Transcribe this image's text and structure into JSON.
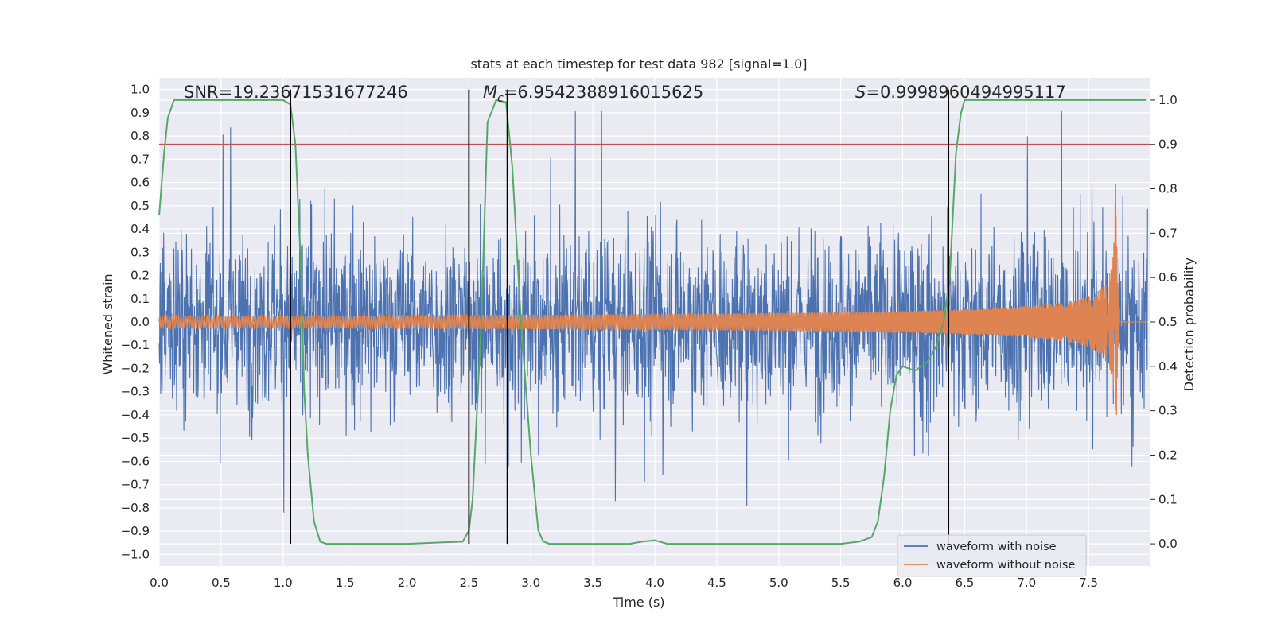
{
  "chart_data": {
    "type": "line",
    "title": "stats at each timestep for test data 982 [signal=1.0]",
    "xlabel": "Time (s)",
    "ylabel_left": "Whitened strain",
    "ylabel_right": "Detection probability",
    "xlim": [
      0.0,
      8.0
    ],
    "ylim_left": [
      -1.05,
      1.05
    ],
    "ylim_right": [
      -0.05,
      1.05
    ],
    "xticks": [
      0.0,
      0.5,
      1.0,
      1.5,
      2.0,
      2.5,
      3.0,
      3.5,
      4.0,
      4.5,
      5.0,
      5.5,
      6.0,
      6.5,
      7.0,
      7.5
    ],
    "xtick_labels": [
      "0.0",
      "0.5",
      "1.0",
      "1.5",
      "2.0",
      "2.5",
      "3.0",
      "3.5",
      "4.0",
      "4.5",
      "5.0",
      "5.5",
      "6.0",
      "6.5",
      "7.0",
      "7.5"
    ],
    "yticks_left": [
      -1.0,
      -0.9,
      -0.8,
      -0.7,
      -0.6,
      -0.5,
      -0.4,
      -0.3,
      -0.2,
      -0.1,
      0.0,
      0.1,
      0.2,
      0.3,
      0.4,
      0.5,
      0.6,
      0.7,
      0.8,
      0.9,
      1.0
    ],
    "ytick_labels_left": [
      "−1.0",
      "−0.9",
      "−0.8",
      "−0.7",
      "−0.6",
      "−0.5",
      "−0.4",
      "−0.3",
      "−0.2",
      "−0.1",
      "0.0",
      "0.1",
      "0.2",
      "0.3",
      "0.4",
      "0.5",
      "0.6",
      "0.7",
      "0.8",
      "0.9",
      "1.0"
    ],
    "yticks_right": [
      0.0,
      0.1,
      0.2,
      0.3,
      0.4,
      0.5,
      0.6,
      0.7,
      0.8,
      0.9,
      1.0
    ],
    "ytick_labels_right": [
      "0.0",
      "0.1",
      "0.2",
      "0.3",
      "0.4",
      "0.5",
      "0.6",
      "0.7",
      "0.8",
      "0.9",
      "1.0"
    ],
    "annotations": {
      "snr": "SNR=19.23671531677246",
      "mc_symbol": "M",
      "mc_sub": "c",
      "mc_value": "=6.9542388916015625",
      "s_symbol": "S",
      "s_value": "=0.9998960494995117"
    },
    "threshold_right_axis": 0.9,
    "vertical_lines_x": [
      1.06,
      2.5,
      2.81,
      6.37
    ],
    "series": [
      {
        "name": "waveform with noise",
        "axis": "left",
        "kind": "noise",
        "description_values": "dense noise envelope roughly between -0.8 and 0.8 with spikes up to ~0.9",
        "color": "#4c72b0"
      },
      {
        "name": "waveform without noise",
        "axis": "left",
        "kind": "chirp",
        "start_amplitude": 0.025,
        "peak_amplitude": 0.65,
        "merger_time": 7.72,
        "end_time": 7.75,
        "color": "#dd8452"
      },
      {
        "name": "detection probability",
        "axis": "right",
        "kind": "line",
        "color": "#55a868",
        "x": [
          0.0,
          0.04,
          0.07,
          0.12,
          0.3,
          0.6,
          0.9,
          1.0,
          1.06,
          1.1,
          1.14,
          1.17,
          1.2,
          1.25,
          1.3,
          1.35,
          1.5,
          2.0,
          2.45,
          2.5,
          2.53,
          2.6,
          2.65,
          2.72,
          2.8,
          2.85,
          2.92,
          3.0,
          3.06,
          3.1,
          3.15,
          3.5,
          3.8,
          3.9,
          4.0,
          4.1,
          4.5,
          5.0,
          5.5,
          5.65,
          5.75,
          5.8,
          5.85,
          5.9,
          5.95,
          6.0,
          6.05,
          6.1,
          6.2,
          6.28,
          6.33,
          6.38,
          6.43,
          6.47,
          6.5,
          6.52,
          7.0,
          7.5,
          7.97
        ],
        "y": [
          0.74,
          0.88,
          0.96,
          1.0,
          1.0,
          1.0,
          1.0,
          1.0,
          0.99,
          0.9,
          0.65,
          0.35,
          0.2,
          0.05,
          0.005,
          0.0,
          0.0,
          0.0,
          0.005,
          0.03,
          0.1,
          0.5,
          0.95,
          1.0,
          0.995,
          0.85,
          0.5,
          0.2,
          0.03,
          0.005,
          0.0,
          0.0,
          0.0,
          0.005,
          0.008,
          0.0,
          0.0,
          0.0,
          0.0,
          0.005,
          0.015,
          0.05,
          0.15,
          0.3,
          0.38,
          0.4,
          0.395,
          0.39,
          0.41,
          0.45,
          0.5,
          0.6,
          0.88,
          0.97,
          1.0,
          1.0,
          1.0,
          1.0,
          1.0
        ]
      },
      {
        "name": "threshold",
        "axis": "right",
        "kind": "hline",
        "color": "#c44e52"
      }
    ],
    "legend": {
      "placement": "lower-right",
      "entries": [
        "waveform with noise",
        "waveform without noise"
      ]
    }
  },
  "colors": {
    "plot_bg": "#eaeaf2",
    "grid": "#ffffff",
    "noise": "#4c72b0",
    "chirp": "#dd8452",
    "prob": "#55a868",
    "threshold": "#c44e52",
    "vline": "#000000"
  }
}
